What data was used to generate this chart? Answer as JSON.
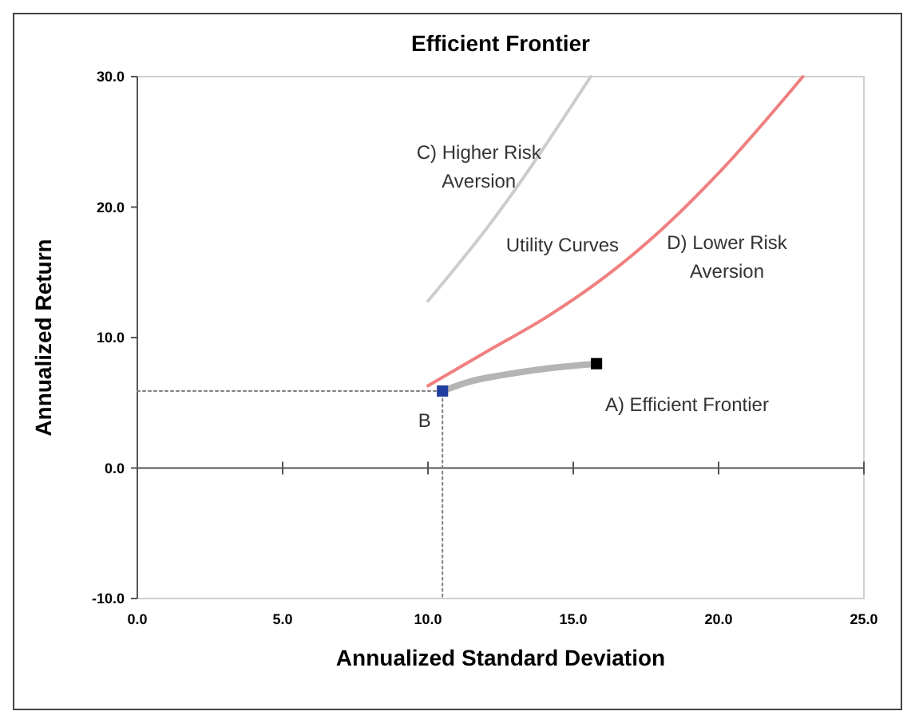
{
  "chart_data": {
    "type": "line",
    "title": "Efficient Frontier",
    "xlabel": "Annualized Standard Deviation",
    "ylabel": "Annualized Return",
    "xlim": [
      0,
      25
    ],
    "ylim": [
      -10,
      30
    ],
    "xticks": [
      {
        "value": 0,
        "label": "0.0"
      },
      {
        "value": 5,
        "label": "5.0"
      },
      {
        "value": 10,
        "label": "10.0"
      },
      {
        "value": 15,
        "label": "15.0"
      },
      {
        "value": 20,
        "label": "20.0"
      },
      {
        "value": 25,
        "label": "25.0"
      }
    ],
    "yticks": [
      {
        "value": -10,
        "label": "-10.0"
      },
      {
        "value": 0,
        "label": "0.0"
      },
      {
        "value": 10,
        "label": "10.0"
      },
      {
        "value": 20,
        "label": "20.0"
      },
      {
        "value": 30,
        "label": "30.0"
      }
    ],
    "series": [
      {
        "color": "#b4b4b4",
        "x": [
          10.5,
          11.4,
          12.5,
          14,
          15.8
        ],
        "values": [
          5.9,
          6.6,
          7.1,
          7.6,
          8.0
        ]
      },
      {
        "color": "#f08080",
        "x": [
          10,
          12,
          14.1,
          16,
          18,
          20,
          22.9
        ],
        "values": [
          6.3,
          8.9,
          11.6,
          14.5,
          18.2,
          22.6,
          30
        ]
      },
      {
        "color": "#cccccc",
        "x": [
          10,
          12.1,
          15.6
        ],
        "values": [
          12.8,
          18.6,
          30
        ]
      },
      {
        "color": "#808080",
        "line_style": "dotted",
        "x": [
          0,
          10.5,
          10.5
        ],
        "values": [
          5.9,
          5.9,
          -10
        ]
      },
      {
        "type": "scatter",
        "marker": "square",
        "colors": [
          "#1f3ea0",
          "#000000"
        ],
        "x": [
          10.5,
          15.8
        ],
        "values": [
          5.9,
          8.0
        ]
      }
    ],
    "annotations": [
      "C) Higher Risk\nAversion",
      "Utility Curves",
      "D) Lower Risk\nAversion",
      "A) Efficient Frontier",
      "B"
    ]
  }
}
